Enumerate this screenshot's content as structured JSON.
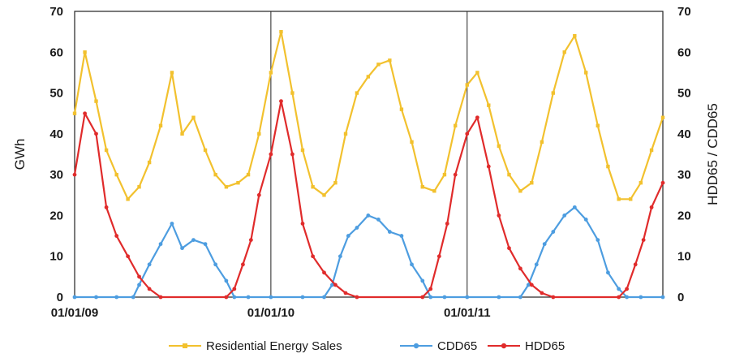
{
  "chart_data": {
    "type": "line",
    "y_label_left": "GWh",
    "y_label_right": "HDD65 / CDD65",
    "ylim": [
      0,
      70
    ],
    "y_ticks": [
      0,
      10,
      20,
      30,
      40,
      50,
      60,
      70
    ],
    "x_range": [
      "2009-01-01",
      "2011-12-31"
    ],
    "x_ticks": [
      {
        "date": "2009-01-01",
        "label": "01/01/09"
      },
      {
        "date": "2010-01-01",
        "label": "01/01/10"
      },
      {
        "date": "2011-01-01",
        "label": "01/01/11"
      }
    ],
    "grid": "vertical lines at year boundaries",
    "legend_position": "bottom",
    "series": [
      {
        "name": "Residential Energy Sales",
        "color": "#f2c12e",
        "marker": "square",
        "x": [
          "2009-01-01",
          "2009-01-20",
          "2009-02-10",
          "2009-03-01",
          "2009-03-20",
          "2009-04-10",
          "2009-05-01",
          "2009-05-20",
          "2009-06-10",
          "2009-07-01",
          "2009-07-20",
          "2009-08-10",
          "2009-09-01",
          "2009-09-20",
          "2009-10-10",
          "2009-11-01",
          "2009-11-20",
          "2009-12-10",
          "2010-01-01",
          "2010-01-20",
          "2010-02-10",
          "2010-03-01",
          "2010-03-20",
          "2010-04-10",
          "2010-05-01",
          "2010-05-20",
          "2010-06-10",
          "2010-07-01",
          "2010-07-20",
          "2010-08-10",
          "2010-09-01",
          "2010-09-20",
          "2010-10-10",
          "2010-11-01",
          "2010-11-20",
          "2010-12-10",
          "2011-01-01",
          "2011-01-20",
          "2011-02-10",
          "2011-03-01",
          "2011-03-20",
          "2011-04-10",
          "2011-05-01",
          "2011-05-20",
          "2011-06-10",
          "2011-07-01",
          "2011-07-20",
          "2011-08-10",
          "2011-09-01",
          "2011-09-20",
          "2011-10-10",
          "2011-11-01",
          "2011-11-20",
          "2011-12-10",
          "2011-12-31"
        ],
        "y": [
          45,
          60,
          48,
          36,
          30,
          24,
          27,
          33,
          42,
          55,
          40,
          44,
          36,
          30,
          27,
          28,
          30,
          40,
          55,
          65,
          50,
          36,
          27,
          25,
          28,
          40,
          50,
          54,
          57,
          58,
          46,
          38,
          27,
          26,
          30,
          42,
          52,
          55,
          47,
          37,
          30,
          26,
          28,
          38,
          50,
          60,
          64,
          55,
          42,
          32,
          24,
          24,
          28,
          36,
          44
        ]
      },
      {
        "name": "CDD65",
        "color": "#4d9de0",
        "marker": "circle",
        "x": [
          "2009-01-01",
          "2009-02-10",
          "2009-03-20",
          "2009-04-20",
          "2009-05-01",
          "2009-05-20",
          "2009-06-10",
          "2009-07-01",
          "2009-07-20",
          "2009-08-10",
          "2009-09-01",
          "2009-09-20",
          "2009-10-10",
          "2009-10-25",
          "2009-11-20",
          "2010-01-01",
          "2010-03-01",
          "2010-04-10",
          "2010-04-25",
          "2010-05-10",
          "2010-05-25",
          "2010-06-10",
          "2010-07-01",
          "2010-07-20",
          "2010-08-10",
          "2010-09-01",
          "2010-09-20",
          "2010-10-10",
          "2010-10-25",
          "2010-11-20",
          "2011-01-01",
          "2011-03-01",
          "2011-04-10",
          "2011-04-25",
          "2011-05-10",
          "2011-05-25",
          "2011-06-10",
          "2011-07-01",
          "2011-07-20",
          "2011-08-10",
          "2011-09-01",
          "2011-09-20",
          "2011-10-10",
          "2011-10-25",
          "2011-11-20",
          "2011-12-31"
        ],
        "y": [
          0,
          0,
          0,
          0,
          3,
          8,
          13,
          18,
          12,
          14,
          13,
          8,
          4,
          0,
          0,
          0,
          0,
          0,
          3,
          10,
          15,
          17,
          20,
          19,
          16,
          15,
          8,
          4,
          0,
          0,
          0,
          0,
          0,
          3,
          8,
          13,
          16,
          20,
          22,
          19,
          14,
          6,
          2,
          0,
          0,
          0
        ]
      },
      {
        "name": "HDD65",
        "color": "#e02b2b",
        "marker": "circle",
        "x": [
          "2009-01-01",
          "2009-01-20",
          "2009-02-10",
          "2009-03-01",
          "2009-03-20",
          "2009-04-10",
          "2009-05-01",
          "2009-05-20",
          "2009-06-10",
          "2009-10-10",
          "2009-10-25",
          "2009-11-10",
          "2009-11-25",
          "2009-12-10",
          "2010-01-01",
          "2010-01-20",
          "2010-02-10",
          "2010-03-01",
          "2010-03-20",
          "2010-04-10",
          "2010-05-01",
          "2010-05-20",
          "2010-06-10",
          "2010-10-10",
          "2010-10-25",
          "2010-11-10",
          "2010-11-25",
          "2010-12-10",
          "2011-01-01",
          "2011-01-20",
          "2011-02-10",
          "2011-03-01",
          "2011-03-20",
          "2011-04-10",
          "2011-05-01",
          "2011-05-20",
          "2011-06-10",
          "2011-10-10",
          "2011-10-25",
          "2011-11-10",
          "2011-11-25",
          "2011-12-10",
          "2011-12-31"
        ],
        "y": [
          30,
          45,
          40,
          22,
          15,
          10,
          5,
          2,
          0,
          0,
          2,
          8,
          14,
          25,
          35,
          48,
          35,
          18,
          10,
          6,
          3,
          1,
          0,
          0,
          2,
          10,
          18,
          30,
          40,
          44,
          32,
          20,
          12,
          7,
          3,
          1,
          0,
          0,
          2,
          8,
          14,
          22,
          28
        ]
      }
    ]
  }
}
